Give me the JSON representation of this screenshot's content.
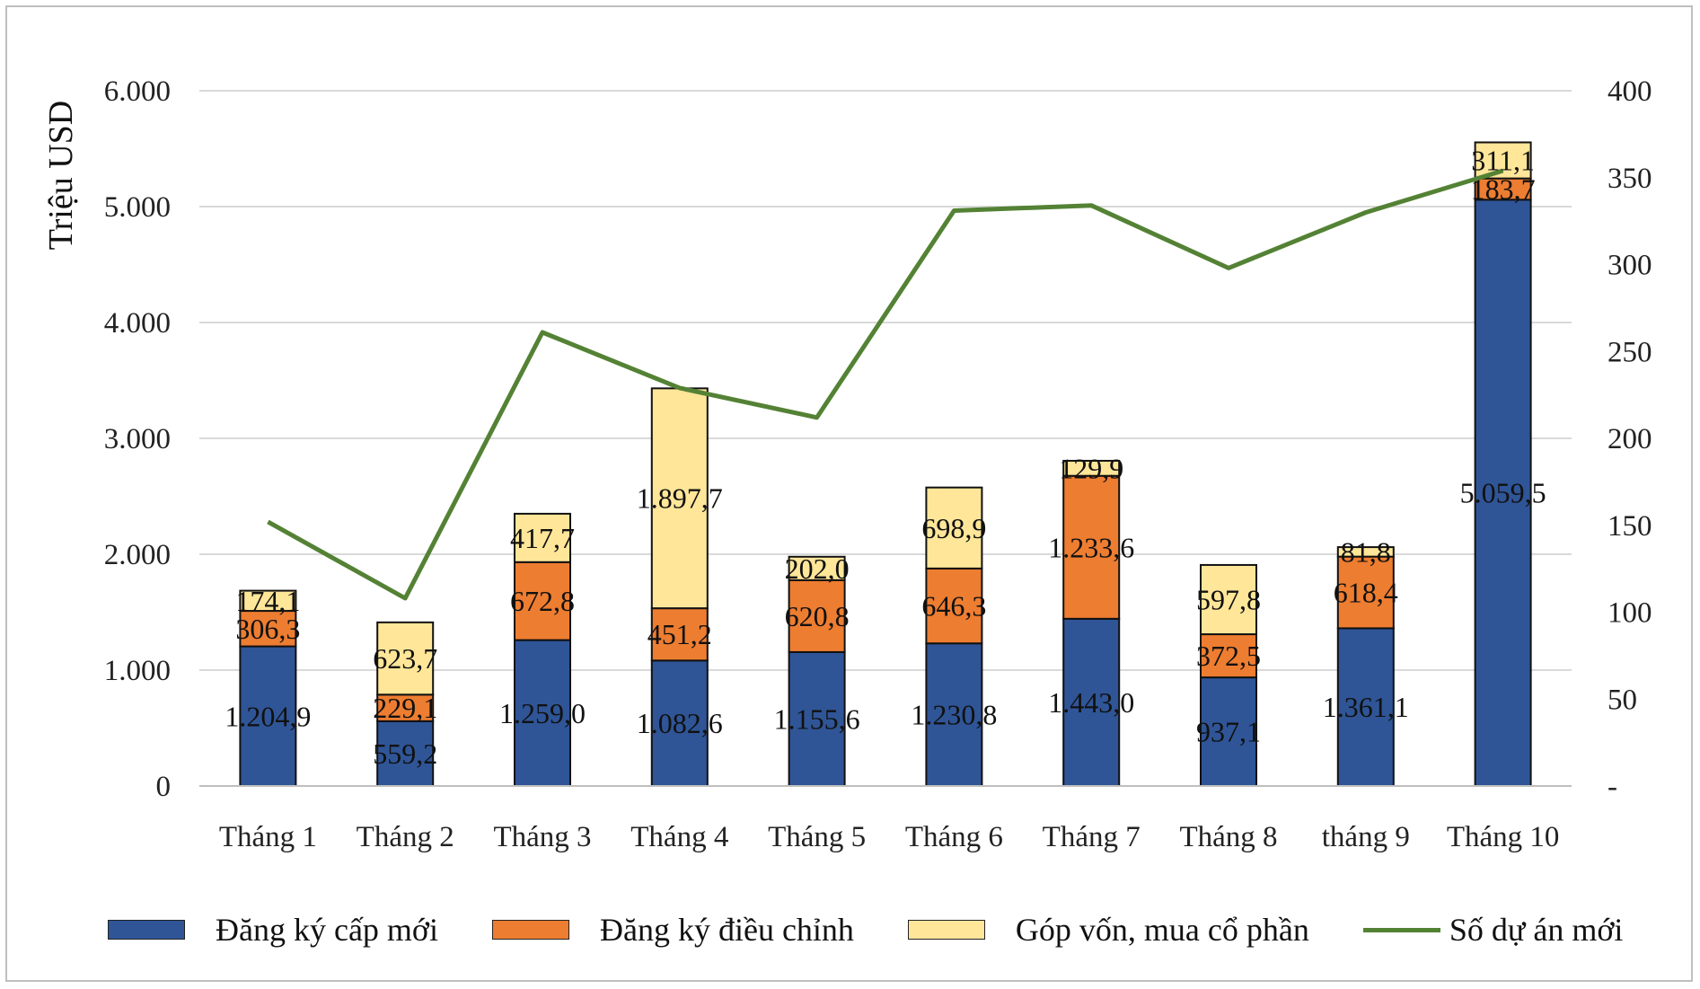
{
  "chart_data": {
    "type": "bar",
    "stacked": true,
    "title": "",
    "categories": [
      "Tháng 1",
      "Tháng 2",
      "Tháng 3",
      "Tháng 4",
      "Tháng 5",
      "Tháng 6",
      "Tháng 7",
      "Tháng 8",
      "tháng 9",
      "Tháng 10"
    ],
    "ylabel": "Triệu USD",
    "ylim": [
      0,
      6000
    ],
    "y_ticks": [
      "0",
      "1.000",
      "2.000",
      "3.000",
      "4.000",
      "5.000",
      "6.000"
    ],
    "y2lim": [
      0,
      400
    ],
    "y2_ticks": [
      "-",
      "50",
      "100",
      "150",
      "200",
      "250",
      "300",
      "350",
      "400"
    ],
    "grid": true,
    "series": [
      {
        "name": "Đăng ký cấp mới",
        "color": "#2f5597",
        "values": [
          1204.9,
          559.2,
          1259.0,
          1082.6,
          1155.6,
          1230.8,
          1443.0,
          937.1,
          1361.1,
          5059.5
        ],
        "labels": [
          "1.204,9",
          "559,2",
          "1.259,0",
          "1.082,6",
          "1.155,6",
          "1.230,8",
          "1.443,0",
          "937,1",
          "1.361,1",
          "5.059,5"
        ]
      },
      {
        "name": "Đăng ký điều chỉnh",
        "color": "#ed7d31",
        "values": [
          306.3,
          229.1,
          672.8,
          451.2,
          620.8,
          646.3,
          1233.6,
          372.5,
          618.4,
          183.7
        ],
        "labels": [
          "306,3",
          "229,1",
          "672,8",
          "451,2",
          "620,8",
          "646,3",
          "1.233,6",
          "372,5",
          "618,4",
          "183,7"
        ]
      },
      {
        "name": "Góp vốn, mua cổ phần",
        "color": "#ffe699",
        "values": [
          174.1,
          623.7,
          417.7,
          1897.7,
          202.0,
          698.9,
          129.9,
          597.8,
          81.8,
          311.1
        ],
        "labels": [
          "174,1",
          "623,7",
          "417,7",
          "1.897,7",
          "202,0",
          "698,9",
          "129,9",
          "597,8",
          "81,8",
          "311,1"
        ]
      },
      {
        "name": "Số dự án mới",
        "type": "line",
        "axis": "secondary",
        "color": "#548235",
        "values": [
          152,
          108,
          261,
          229,
          212,
          331,
          334,
          298,
          330,
          354
        ]
      }
    ],
    "legend_position": "bottom"
  }
}
